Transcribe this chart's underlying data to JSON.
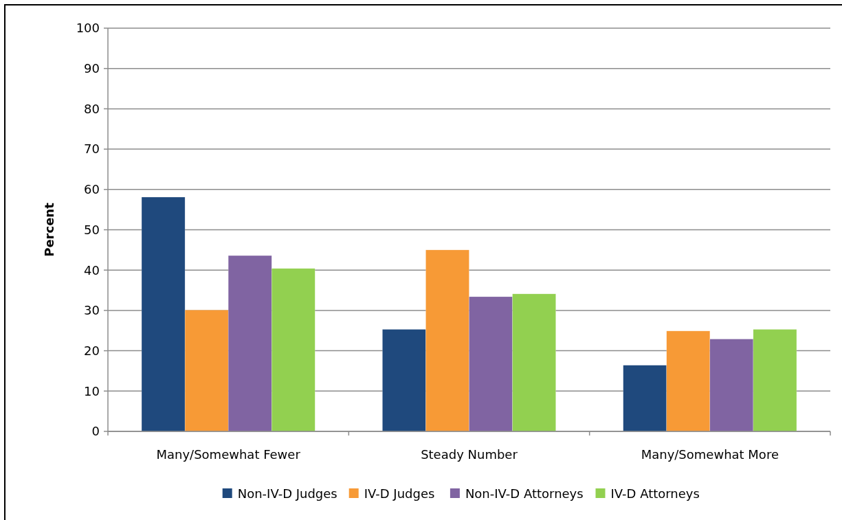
{
  "chart_data": {
    "type": "bar",
    "ylabel": "Percent",
    "categories": [
      "Many/Somewhat Fewer",
      "Steady Number",
      "Many/Somewhat More"
    ],
    "series": [
      {
        "name": "Non-IV-D Judges",
        "color": "#1f497d",
        "values": [
          58.1,
          25.3,
          16.4
        ]
      },
      {
        "name": "IV-D Judges",
        "color": "#f79a36",
        "values": [
          30.1,
          45.0,
          24.9
        ]
      },
      {
        "name": "Non-IV-D Attorneys",
        "color": "#8064a2",
        "values": [
          43.6,
          33.4,
          22.9
        ]
      },
      {
        "name": "IV-D Attorneys",
        "color": "#92d050",
        "values": [
          40.4,
          34.1,
          25.3
        ]
      }
    ],
    "ylim": [
      0,
      100
    ],
    "yticks": [
      0,
      10,
      20,
      30,
      40,
      50,
      60,
      70,
      80,
      90,
      100
    ],
    "grid": "y",
    "legend": "bottom"
  }
}
